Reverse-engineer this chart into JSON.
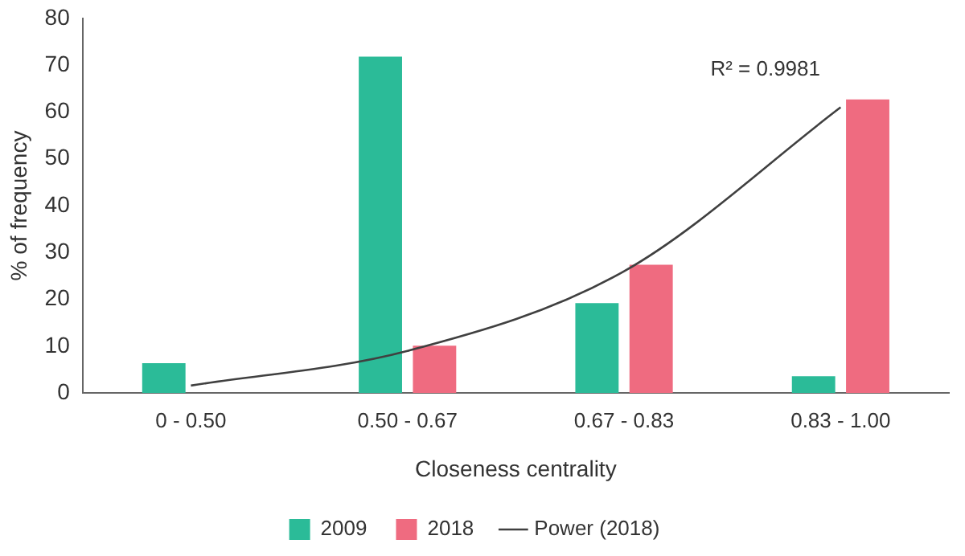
{
  "chart_data": {
    "type": "bar",
    "xlabel": "Closeness centrality",
    "ylabel": "% of frequency",
    "categories": [
      "0 - 0.50",
      "0.50 - 0.67",
      "0.67 - 0.83",
      "0.83 - 1.00"
    ],
    "series": [
      {
        "name": "2009",
        "color": "#2bbb98",
        "values": [
          6.4,
          71.8,
          19.2,
          3.6
        ]
      },
      {
        "name": "2018",
        "color": "#ef6b80",
        "values": [
          null,
          10.1,
          27.4,
          62.7
        ]
      },
      {
        "name": "Power (2018)",
        "type": "line",
        "color": "#404040",
        "x": [
          "0 - 0.50",
          "0.50 - 0.67",
          "0.67 - 0.83",
          "0.83 - 1.00"
        ],
        "values": [
          1.6,
          9,
          26,
          61
        ],
        "marker": "none",
        "line_style": "solid"
      }
    ],
    "ylim": [
      0,
      80
    ],
    "yticks": [
      0,
      10,
      20,
      30,
      40,
      50,
      60,
      70,
      80
    ],
    "grid": false,
    "legend": "bottom",
    "annotations": [
      "R² = 0.9981"
    ]
  }
}
